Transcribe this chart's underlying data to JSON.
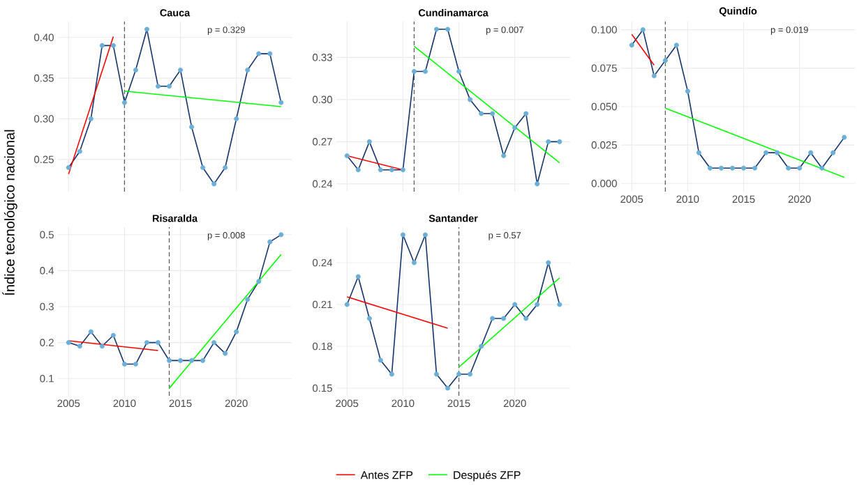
{
  "chart_data": [
    {
      "type": "line",
      "title": "Cauca",
      "ylabel": "Índice tecnológico nacional",
      "legend": "bottom",
      "tick_labels": "y",
      "grid": true,
      "marker": "circle",
      "x": [
        2005,
        2006,
        2007,
        2008,
        2009,
        2010,
        2011,
        2012,
        2013,
        2014,
        2015,
        2016,
        2017,
        2018,
        2019,
        2020,
        2021,
        2022,
        2023,
        2024
      ],
      "xlim": [
        2004.05,
        2024.95
      ],
      "xticks": [
        2005,
        2010,
        2015,
        2020
      ],
      "ylim": [
        0.2105,
        0.4195
      ],
      "yticks": [
        {
          "value": 0.25,
          "label": "0.25"
        },
        {
          "value": 0.3,
          "label": "0.30"
        },
        {
          "value": 0.35,
          "label": "0.35"
        },
        {
          "value": 0.4,
          "label": "0.40"
        }
      ],
      "series": [
        {
          "color": "#12336b",
          "colors": [
            "#6baed6",
            "#6baed6",
            "#6baed6",
            "#6baed6",
            "#6baed6",
            "#6baed6",
            "#6baed6",
            "#6baed6",
            "#6baed6",
            "#6baed6",
            "#6baed6",
            "#6baed6",
            "#6baed6",
            "#6baed6",
            "#6baed6",
            "#6baed6",
            "#6baed6",
            "#6baed6",
            "#6baed6",
            "#6baed6"
          ],
          "values": [
            0.24,
            0.26,
            0.3,
            0.39,
            0.39,
            0.32,
            0.36,
            0.41,
            0.34,
            0.34,
            0.36,
            0.29,
            0.24,
            0.22,
            0.24,
            0.3,
            0.36,
            0.38,
            0.38,
            0.32
          ]
        },
        {
          "name": "Antes ZFP",
          "marker": "none",
          "color": "#ff0000",
          "x": [
            2005,
            2009
          ],
          "values": [
            0.232,
            0.401
          ]
        },
        {
          "name": "Después ZFP",
          "marker": "none",
          "color": "#00ff00",
          "x": [
            2010,
            2024
          ],
          "values": [
            0.334,
            0.315
          ]
        }
      ],
      "ref_lines": [
        {
          "axis": "x",
          "value": 2010,
          "color": "#555555",
          "line_style": "dashed"
        }
      ],
      "annotations": [
        "p = 0.329"
      ]
    },
    {
      "type": "line",
      "title": "Cundinamarca",
      "tick_labels": "y",
      "grid": true,
      "marker": "circle",
      "x": [
        2005,
        2006,
        2007,
        2008,
        2009,
        2010,
        2011,
        2012,
        2013,
        2014,
        2015,
        2016,
        2017,
        2018,
        2019,
        2020,
        2021,
        2022,
        2023,
        2024
      ],
      "xlim": [
        2004.05,
        2024.95
      ],
      "xticks": [
        2005,
        2010,
        2015,
        2020
      ],
      "ylim": [
        0.2345,
        0.3555
      ],
      "yticks": [
        0.24,
        0.27,
        {
          "value": 0.3,
          "label": "0.30"
        },
        0.33
      ],
      "series": [
        {
          "color": "#12336b",
          "colors": [
            "#6baed6",
            "#6baed6",
            "#6baed6",
            "#6baed6",
            "#6baed6",
            "#6baed6",
            "#6baed6",
            "#6baed6",
            "#6baed6",
            "#6baed6",
            "#6baed6",
            "#6baed6",
            "#6baed6",
            "#6baed6",
            "#6baed6",
            "#6baed6",
            "#6baed6",
            "#6baed6",
            "#6baed6",
            "#6baed6"
          ],
          "values": [
            0.26,
            0.25,
            0.27,
            0.25,
            0.25,
            0.25,
            0.32,
            0.32,
            0.35,
            0.35,
            0.32,
            0.3,
            0.29,
            0.29,
            0.26,
            0.28,
            0.29,
            0.24,
            0.27,
            0.27
          ]
        },
        {
          "marker": "none",
          "color": "#ff0000",
          "x": [
            2005,
            2010
          ],
          "values": [
            0.26,
            0.25
          ]
        },
        {
          "marker": "none",
          "color": "#00ff00",
          "x": [
            2011,
            2024
          ],
          "values": [
            0.338,
            0.255
          ]
        }
      ],
      "ref_lines": [
        {
          "axis": "x",
          "value": 2011,
          "color": "#555555",
          "line_style": "dashed"
        }
      ],
      "annotations": [
        "p = 0.007"
      ]
    },
    {
      "type": "line",
      "title": "Quindío",
      "grid": true,
      "marker": "circle",
      "x": [
        2005,
        2006,
        2007,
        2008,
        2009,
        2010,
        2011,
        2012,
        2013,
        2014,
        2015,
        2016,
        2017,
        2018,
        2019,
        2020,
        2021,
        2022,
        2023,
        2024
      ],
      "xlim": [
        2004.05,
        2024.95
      ],
      "xticks": [
        2005,
        2010,
        2015,
        2020
      ],
      "ylim": [
        -0.0053,
        0.1053
      ],
      "yticks": [
        {
          "value": 0,
          "label": "0.000"
        },
        {
          "value": 0.025,
          "label": "0.025"
        },
        {
          "value": 0.05,
          "label": "0.050"
        },
        {
          "value": 0.075,
          "label": "0.075"
        },
        {
          "value": 0.1,
          "label": "0.100"
        }
      ],
      "series": [
        {
          "color": "#12336b",
          "colors": [
            "#6baed6",
            "#6baed6",
            "#6baed6",
            "#6baed6",
            "#6baed6",
            "#6baed6",
            "#6baed6",
            "#6baed6",
            "#6baed6",
            "#6baed6",
            "#6baed6",
            "#6baed6",
            "#6baed6",
            "#6baed6",
            "#6baed6",
            "#6baed6",
            "#6baed6",
            "#6baed6",
            "#6baed6",
            "#6baed6"
          ],
          "values": [
            0.09,
            0.1,
            0.07,
            0.08,
            0.09,
            0.06,
            0.02,
            0.01,
            0.01,
            0.01,
            0.01,
            0.01,
            0.02,
            0.02,
            0.01,
            0.01,
            0.02,
            0.01,
            0.02,
            0.03
          ]
        },
        {
          "marker": "none",
          "color": "#ff0000",
          "x": [
            2005,
            2007
          ],
          "values": [
            0.097,
            0.077
          ]
        },
        {
          "marker": "none",
          "color": "#00ff00",
          "x": [
            2008,
            2024
          ],
          "values": [
            0.049,
            0.004
          ]
        }
      ],
      "ref_lines": [
        {
          "axis": "x",
          "value": 2008,
          "color": "#555555",
          "line_style": "dashed"
        }
      ],
      "annotations": [
        "p = 0.019"
      ]
    },
    {
      "type": "line",
      "title": "Risaralda",
      "grid": true,
      "marker": "circle",
      "x": [
        2005,
        2006,
        2007,
        2008,
        2009,
        2010,
        2011,
        2012,
        2013,
        2014,
        2015,
        2016,
        2017,
        2018,
        2019,
        2020,
        2021,
        2022,
        2023,
        2024
      ],
      "xlim": [
        2004.05,
        2024.95
      ],
      "xticks": [
        2005,
        2010,
        2015,
        2020
      ],
      "ylim": [
        0.052,
        0.521
      ],
      "yticks": [
        0.1,
        0.2,
        0.3,
        0.4,
        0.5
      ],
      "series": [
        {
          "color": "#12336b",
          "colors": [
            "#6baed6",
            "#6baed6",
            "#6baed6",
            "#6baed6",
            "#6baed6",
            "#6baed6",
            "#6baed6",
            "#6baed6",
            "#6baed6",
            "#6baed6",
            "#6baed6",
            "#6baed6",
            "#6baed6",
            "#6baed6",
            "#6baed6",
            "#6baed6",
            "#6baed6",
            "#6baed6",
            "#6baed6",
            "#6baed6"
          ],
          "values": [
            0.2,
            0.19,
            0.23,
            0.19,
            0.22,
            0.14,
            0.14,
            0.2,
            0.2,
            0.15,
            0.15,
            0.15,
            0.15,
            0.2,
            0.17,
            0.23,
            0.32,
            0.37,
            0.48,
            0.5
          ]
        },
        {
          "marker": "none",
          "color": "#ff0000",
          "x": [
            2005,
            2013
          ],
          "values": [
            0.205,
            0.178
          ]
        },
        {
          "marker": "none",
          "color": "#00ff00",
          "x": [
            2014,
            2024
          ],
          "values": [
            0.073,
            0.445
          ]
        }
      ],
      "ref_lines": [
        {
          "axis": "x",
          "value": 2014,
          "color": "#555555",
          "line_style": "dashed"
        }
      ],
      "annotations": [
        "p = 0.008"
      ]
    },
    {
      "type": "line",
      "title": "Santander",
      "grid": true,
      "marker": "circle",
      "x": [
        2005,
        2006,
        2007,
        2008,
        2009,
        2010,
        2011,
        2012,
        2013,
        2014,
        2015,
        2016,
        2017,
        2018,
        2019,
        2020,
        2021,
        2022,
        2023,
        2024
      ],
      "xlim": [
        2004.05,
        2024.95
      ],
      "xticks": [
        2005,
        2010,
        2015,
        2020
      ],
      "ylim": [
        0.1445,
        0.2655
      ],
      "yticks": [
        0.15,
        0.18,
        0.21,
        0.24
      ],
      "series": [
        {
          "color": "#12336b",
          "colors": [
            "#6baed6",
            "#6baed6",
            "#6baed6",
            "#6baed6",
            "#6baed6",
            "#6baed6",
            "#6baed6",
            "#6baed6",
            "#6baed6",
            "#6baed6",
            "#6baed6",
            "#6baed6",
            "#6baed6",
            "#6baed6",
            "#6baed6",
            "#6baed6",
            "#6baed6",
            "#6baed6",
            "#6baed6",
            "#6baed6"
          ],
          "values": [
            0.21,
            0.23,
            0.2,
            0.17,
            0.16,
            0.26,
            0.24,
            0.26,
            0.16,
            0.15,
            0.16,
            0.16,
            0.18,
            0.2,
            0.2,
            0.21,
            0.2,
            0.21,
            0.24,
            0.21
          ]
        },
        {
          "marker": "none",
          "color": "#ff0000",
          "x": [
            2005,
            2014
          ],
          "values": [
            0.2155,
            0.193
          ]
        },
        {
          "marker": "none",
          "color": "#00ff00",
          "x": [
            2015,
            2024
          ],
          "values": [
            0.165,
            0.229
          ]
        }
      ],
      "ref_lines": [
        {
          "axis": "x",
          "value": 2015,
          "color": "#555555",
          "line_style": "dashed"
        }
      ],
      "annotations": [
        "p = 0.57"
      ]
    }
  ]
}
